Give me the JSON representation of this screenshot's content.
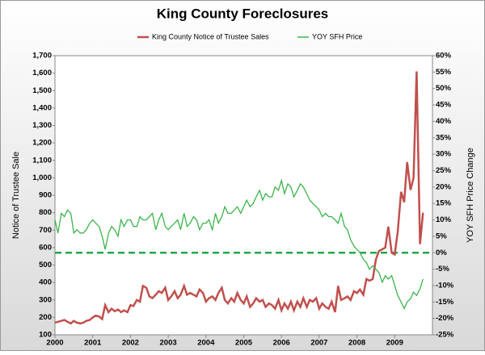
{
  "chart_data": {
    "type": "line",
    "title": "King County Foreclosures",
    "ylabel": "Notice of Trustee Sale",
    "y2label": "YOY SFH Price Change",
    "xlim": [
      2000,
      2010
    ],
    "xticks": [
      2000,
      2001,
      2002,
      2003,
      2004,
      2005,
      2006,
      2007,
      2008,
      2009
    ],
    "ylim": [
      100,
      1700
    ],
    "yticks": [
      100,
      200,
      300,
      400,
      500,
      600,
      700,
      800,
      900,
      {
        "value": 1000,
        "label": "1,000"
      },
      {
        "value": 1100,
        "label": "1,100"
      },
      {
        "value": 1200,
        "label": "1,200"
      },
      {
        "value": 1300,
        "label": "1,300"
      },
      {
        "value": 1400,
        "label": "1,400"
      },
      {
        "value": 1500,
        "label": "1,500"
      },
      {
        "value": 1600,
        "label": "1,600"
      },
      {
        "value": 1700,
        "label": "1,700"
      }
    ],
    "y2lim": [
      -25,
      60
    ],
    "y2ticks": [
      {
        "value": -25,
        "label": "-25%"
      },
      {
        "value": -20,
        "label": "-20%"
      },
      {
        "value": -15,
        "label": "-15%"
      },
      {
        "value": -10,
        "label": "-10%"
      },
      {
        "value": -5,
        "label": "-5%"
      },
      {
        "value": 0,
        "label": "0%"
      },
      {
        "value": 5,
        "label": "5%"
      },
      {
        "value": 10,
        "label": "10%"
      },
      {
        "value": 15,
        "label": "15%"
      },
      {
        "value": 20,
        "label": "20%"
      },
      {
        "value": 25,
        "label": "25%"
      },
      {
        "value": 30,
        "label": "30%"
      },
      {
        "value": 35,
        "label": "35%"
      },
      {
        "value": 40,
        "label": "40%"
      },
      {
        "value": 45,
        "label": "45%"
      },
      {
        "value": 50,
        "label": "50%"
      },
      {
        "value": 55,
        "label": "55%"
      },
      {
        "value": 60,
        "label": "60%"
      }
    ],
    "zero_line_color": "#22a84a",
    "x": [
      2000,
      2000.08,
      2000.17,
      2000.25,
      2000.33,
      2000.42,
      2000.5,
      2000.58,
      2000.67,
      2000.75,
      2000.83,
      2000.92,
      2001,
      2001.08,
      2001.17,
      2001.25,
      2001.33,
      2001.42,
      2001.5,
      2001.58,
      2001.67,
      2001.75,
      2001.83,
      2001.92,
      2002,
      2002.08,
      2002.17,
      2002.25,
      2002.33,
      2002.42,
      2002.5,
      2002.58,
      2002.67,
      2002.75,
      2002.83,
      2002.92,
      2003,
      2003.08,
      2003.17,
      2003.25,
      2003.33,
      2003.42,
      2003.5,
      2003.58,
      2003.67,
      2003.75,
      2003.83,
      2003.92,
      2004,
      2004.08,
      2004.17,
      2004.25,
      2004.33,
      2004.42,
      2004.5,
      2004.58,
      2004.67,
      2004.75,
      2004.83,
      2004.92,
      2005,
      2005.08,
      2005.17,
      2005.25,
      2005.33,
      2005.42,
      2005.5,
      2005.58,
      2005.67,
      2005.75,
      2005.83,
      2005.92,
      2006,
      2006.08,
      2006.17,
      2006.25,
      2006.33,
      2006.42,
      2006.5,
      2006.58,
      2006.67,
      2006.75,
      2006.83,
      2006.92,
      2007,
      2007.08,
      2007.17,
      2007.25,
      2007.33,
      2007.42,
      2007.5,
      2007.58,
      2007.67,
      2007.75,
      2007.83,
      2007.92,
      2008,
      2008.08,
      2008.17,
      2008.25,
      2008.33,
      2008.42,
      2008.5,
      2008.58,
      2008.67,
      2008.75,
      2008.83,
      2008.92,
      2009,
      2009.08,
      2009.17,
      2009.25,
      2009.33,
      2009.42,
      2009.5,
      2009.58,
      2009.67,
      2009.75
    ],
    "series": [
      {
        "name": "King County Notice of Trustee Sales",
        "color": "#c0504d",
        "values": [
          170,
          175,
          180,
          185,
          175,
          165,
          180,
          170,
          165,
          170,
          180,
          185,
          200,
          210,
          205,
          190,
          270,
          230,
          250,
          235,
          245,
          230,
          240,
          230,
          270,
          265,
          300,
          290,
          380,
          370,
          320,
          310,
          330,
          350,
          340,
          370,
          300,
          320,
          350,
          310,
          330,
          380,
          330,
          340,
          330,
          320,
          360,
          340,
          290,
          310,
          320,
          300,
          340,
          370,
          300,
          280,
          310,
          290,
          340,
          300,
          280,
          320,
          260,
          280,
          310,
          290,
          300,
          260,
          280,
          270,
          250,
          300,
          240,
          280,
          250,
          290,
          240,
          290,
          260,
          310,
          260,
          300,
          290,
          310,
          250,
          280,
          260,
          250,
          290,
          230,
          380,
          300,
          310,
          320,
          300,
          350,
          340,
          360,
          330,
          420,
          410,
          420,
          530,
          580,
          590,
          600,
          720,
          570,
          560,
          690,
          920,
          860,
          1090,
          930,
          1000,
          1610,
          620,
          800
        ]
      },
      {
        "name": "YOY SFH Price",
        "color": "#3cb44b",
        "axis": "y2",
        "values": [
          10,
          6,
          12,
          11,
          13,
          12,
          6,
          7,
          6,
          6,
          7,
          9,
          10,
          9,
          8,
          5,
          1,
          6,
          8,
          7,
          5,
          10,
          8,
          10,
          10,
          8,
          8,
          11,
          10,
          10,
          11,
          12,
          7,
          10,
          12,
          8,
          7,
          8,
          9,
          10,
          7,
          12,
          8,
          9,
          11,
          10,
          7,
          9,
          9,
          10,
          7,
          12,
          9,
          11,
          14,
          12,
          12,
          13,
          14,
          12,
          14,
          16,
          14,
          15,
          17,
          19,
          16,
          18,
          17,
          17,
          20,
          19,
          22,
          18,
          21,
          20,
          17,
          19,
          21,
          20,
          18,
          16,
          15,
          14,
          13,
          11,
          12,
          11,
          11,
          10,
          9,
          12,
          8,
          7,
          4,
          2,
          1,
          0,
          -2,
          -3,
          -5,
          -4,
          -5,
          -6,
          -9,
          -7,
          -8,
          -7,
          -10,
          -13,
          -15,
          -17,
          -15,
          -14,
          -12,
          -13,
          -11,
          -8
        ]
      }
    ]
  }
}
